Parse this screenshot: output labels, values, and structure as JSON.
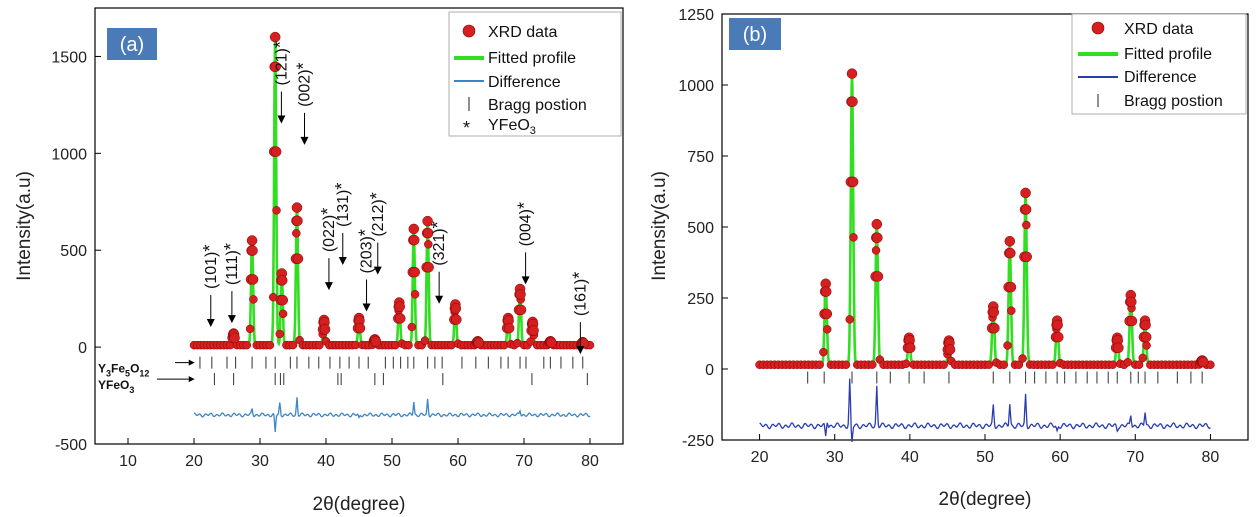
{
  "chart_data": [
    {
      "type": "scatter",
      "panel_label": "(a)",
      "xlabel": "2θ(degree)",
      "ylabel": "Intensity(a.u)",
      "xlim": [
        5,
        85
      ],
      "ylim": [
        -500,
        1750
      ],
      "xticks": [
        "10",
        "20",
        "30",
        "40",
        "50",
        "60",
        "70",
        "80"
      ],
      "yticks": [
        "-500",
        "0",
        "500",
        "1000",
        "1500"
      ],
      "legend": {
        "position": "top-right",
        "entries": [
          "XRD data",
          "Fitted profile",
          "Difference",
          "Bragg postion",
          "YFeO"
        ],
        "yfeo_subscript": "3"
      },
      "colors": {
        "data": "#d42020",
        "fit": "#33dd22",
        "difference": "#3a86c8",
        "bragg": "#444444"
      },
      "peaks": [
        {
          "x": 28.8,
          "y": 550
        },
        {
          "x": 32.3,
          "y": 1600
        },
        {
          "x": 33.3,
          "y": 380
        },
        {
          "x": 35.6,
          "y": 720
        },
        {
          "x": 39.7,
          "y": 140
        },
        {
          "x": 45.0,
          "y": 150
        },
        {
          "x": 51.1,
          "y": 230
        },
        {
          "x": 53.3,
          "y": 610
        },
        {
          "x": 55.4,
          "y": 650
        },
        {
          "x": 59.6,
          "y": 220
        },
        {
          "x": 67.6,
          "y": 150
        },
        {
          "x": 69.4,
          "y": 300
        },
        {
          "x": 71.3,
          "y": 130
        },
        {
          "x": 26.0,
          "y": 70
        },
        {
          "x": 47.4,
          "y": 40
        },
        {
          "x": 63.0,
          "y": 30
        },
        {
          "x": 74.0,
          "y": 30
        },
        {
          "x": 78.9,
          "y": 25
        }
      ],
      "baseline": 10,
      "bragg_rows": [
        {
          "label_main": "Y",
          "label_sub1": "3",
          "label_mid": "Fe",
          "label_sub2": "5",
          "label_end": "O",
          "label_sub3": "12",
          "y": -80,
          "positions": [
            20.9,
            22.7,
            25.0,
            26.3,
            28.8,
            30.9,
            32.3,
            34.6,
            35.6,
            37.4,
            38.9,
            40.6,
            42.1,
            43.5,
            45.0,
            46.4,
            49.0,
            50.2,
            51.3,
            52.4,
            53.3,
            55.4,
            56.5,
            57.6,
            60.6,
            62.7,
            64.6,
            66.5,
            67.6,
            69.4,
            70.3,
            73.0,
            74.0,
            75.6,
            77.4,
            78.9
          ]
        },
        {
          "label_main": "YFeO",
          "label_sub1": "3",
          "y": -165,
          "positions": [
            23.1,
            26.0,
            32.3,
            33.1,
            33.6,
            41.8,
            42.3,
            47.4,
            48.7,
            57.7,
            71.2,
            79.6
          ]
        }
      ],
      "difference_level": -350,
      "difference_spikes": [
        {
          "x": 32.3,
          "dy": -90
        },
        {
          "x": 33.0,
          "dy": 60
        },
        {
          "x": 35.6,
          "dy": 90
        },
        {
          "x": 53.3,
          "dy": 70
        },
        {
          "x": 55.4,
          "dy": 80
        },
        {
          "x": 28.8,
          "dy": 30
        },
        {
          "x": 69.4,
          "dy": 25
        },
        {
          "x": 45.0,
          "dy": -20
        }
      ],
      "annotations": [
        {
          "text": "(101)",
          "x": 23.3,
          "y": 300
        },
        {
          "text": "(111)",
          "x": 26.5,
          "y": 320
        },
        {
          "text": "(121)",
          "x": 34.0,
          "y": 1350
        },
        {
          "text": "(002)",
          "x": 37.5,
          "y": 1240
        },
        {
          "text": "(022)",
          "x": 41.2,
          "y": 490
        },
        {
          "text": "(131)",
          "x": 43.3,
          "y": 620
        },
        {
          "text": "(203)",
          "x": 46.9,
          "y": 380
        },
        {
          "text": "(212)",
          "x": 48.6,
          "y": 570
        },
        {
          "text": "(321)",
          "x": 57.9,
          "y": 420
        },
        {
          "text": "(004)",
          "x": 71.0,
          "y": 520
        },
        {
          "text": "(161)",
          "x": 79.3,
          "y": 160
        }
      ]
    },
    {
      "type": "scatter",
      "panel_label": "(b)",
      "xlabel": "2θ(degree)",
      "ylabel": "Intensity(a.u)",
      "xlim": [
        15,
        85
      ],
      "ylim": [
        -250,
        1250
      ],
      "xticks": [
        "20",
        "30",
        "40",
        "50",
        "60",
        "70",
        "80"
      ],
      "yticks": [
        "-250",
        "0",
        "250",
        "500",
        "750",
        "1000",
        "1250"
      ],
      "legend": {
        "position": "top-right",
        "entries": [
          "XRD data",
          "Fitted profile",
          "Difference",
          "Bragg postion"
        ]
      },
      "colors": {
        "data": "#d42020",
        "fit": "#33dd22",
        "difference": "#2a3cb0",
        "bragg": "#444444"
      },
      "peaks": [
        {
          "x": 28.8,
          "y": 300
        },
        {
          "x": 32.3,
          "y": 1040
        },
        {
          "x": 35.6,
          "y": 510
        },
        {
          "x": 39.9,
          "y": 110
        },
        {
          "x": 45.2,
          "y": 100
        },
        {
          "x": 51.1,
          "y": 220
        },
        {
          "x": 53.3,
          "y": 450
        },
        {
          "x": 55.4,
          "y": 620
        },
        {
          "x": 59.6,
          "y": 170
        },
        {
          "x": 67.6,
          "y": 110
        },
        {
          "x": 69.4,
          "y": 260
        },
        {
          "x": 71.3,
          "y": 170
        },
        {
          "x": 78.9,
          "y": 30
        }
      ],
      "baseline": 15,
      "bragg_rows": [
        {
          "y": -30,
          "positions": [
            26.4,
            28.6,
            32.3,
            35.6,
            37.4,
            39.9,
            41.9,
            45.2,
            51.1,
            53.3,
            55.4,
            56.6,
            58.1,
            59.6,
            60.6,
            62.1,
            63.6,
            64.9,
            66.4,
            67.6,
            69.4,
            70.4,
            71.3,
            73.0,
            75.6,
            77.4,
            78.9
          ]
        }
      ],
      "difference_level": -200,
      "difference_spikes": [
        {
          "x": 32.3,
          "dy": -60
        },
        {
          "x": 32.0,
          "dy": 160
        },
        {
          "x": 35.6,
          "dy": 140
        },
        {
          "x": 51.1,
          "dy": 70
        },
        {
          "x": 53.3,
          "dy": 80
        },
        {
          "x": 55.4,
          "dy": 110
        },
        {
          "x": 29.0,
          "dy": 20
        },
        {
          "x": 59.6,
          "dy": -20
        },
        {
          "x": 69.4,
          "dy": 40
        },
        {
          "x": 71.3,
          "dy": 50
        },
        {
          "x": 67.6,
          "dy": -15
        },
        {
          "x": 28.8,
          "dy": -40
        }
      ],
      "annotations": []
    }
  ]
}
